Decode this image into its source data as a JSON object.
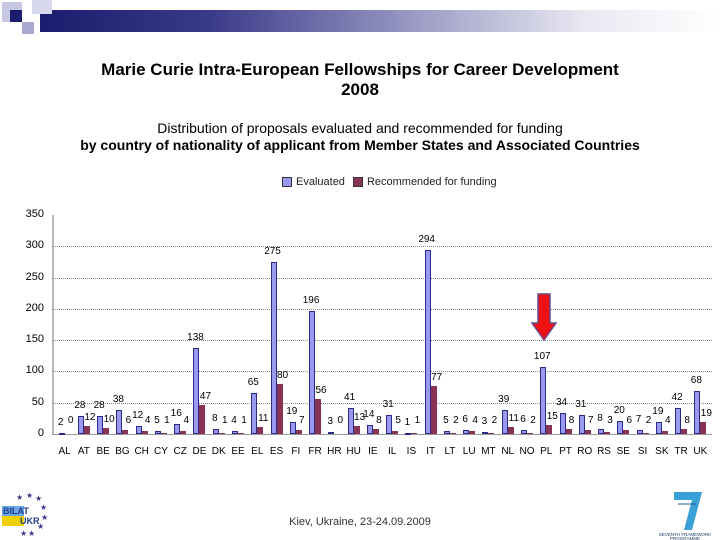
{
  "slide": {
    "title_line1": "Marie Curie Intra-European Fellowships for Career Development",
    "title_line2": "2008",
    "subtitle_line1": "Distribution of proposals evaluated and recommended for funding",
    "subtitle_line2": "by country of nationality of applicant from Member States and Associated Countries",
    "footer": "Kiev, Ukraine, 23-24.09.2009",
    "logo_left": "BILAT-UKR",
    "logo_right": "SEVENTH FRAMEWORK PROGRAMME"
  },
  "colors": {
    "evaluated": "#9999ee",
    "recommended": "#883355",
    "arrow": "#ee1111",
    "header": "#1c1c6e"
  },
  "chart_data": {
    "type": "bar",
    "title": "",
    "xlabel": "",
    "ylabel": "",
    "ylim": [
      0,
      350
    ],
    "yticks": [
      0,
      50,
      100,
      150,
      200,
      250,
      300,
      350
    ],
    "grid": true,
    "legend_position": "top",
    "categories": [
      "AL",
      "AT",
      "BE",
      "BG",
      "CH",
      "CY",
      "CZ",
      "DE",
      "DK",
      "EE",
      "EL",
      "ES",
      "FI",
      "FR",
      "HR",
      "HU",
      "IE",
      "IL",
      "IS",
      "IT",
      "LT",
      "LU",
      "MT",
      "NL",
      "NO",
      "PL",
      "PT",
      "RO",
      "RS",
      "SE",
      "SI",
      "SK",
      "TR",
      "UK"
    ],
    "series": [
      {
        "name": "Evaluated",
        "values": [
          2,
          28,
          28,
          38,
          12,
          5,
          16,
          138,
          8,
          4,
          65,
          275,
          19,
          196,
          3,
          41,
          14,
          31,
          1,
          294,
          5,
          6,
          3,
          39,
          6,
          107,
          34,
          31,
          8,
          20,
          7,
          19,
          42,
          68
        ]
      },
      {
        "name": "Recommended for funding",
        "values": [
          0,
          12,
          10,
          6,
          4,
          1,
          4,
          47,
          1,
          1,
          11,
          80,
          7,
          56,
          0,
          13,
          8,
          5,
          1,
          77,
          2,
          4,
          2,
          11,
          2,
          15,
          8,
          7,
          3,
          6,
          2,
          4,
          8,
          19
        ]
      }
    ],
    "annotations": [
      {
        "type": "arrow",
        "target": "PL",
        "color": "#ee1111"
      }
    ]
  }
}
